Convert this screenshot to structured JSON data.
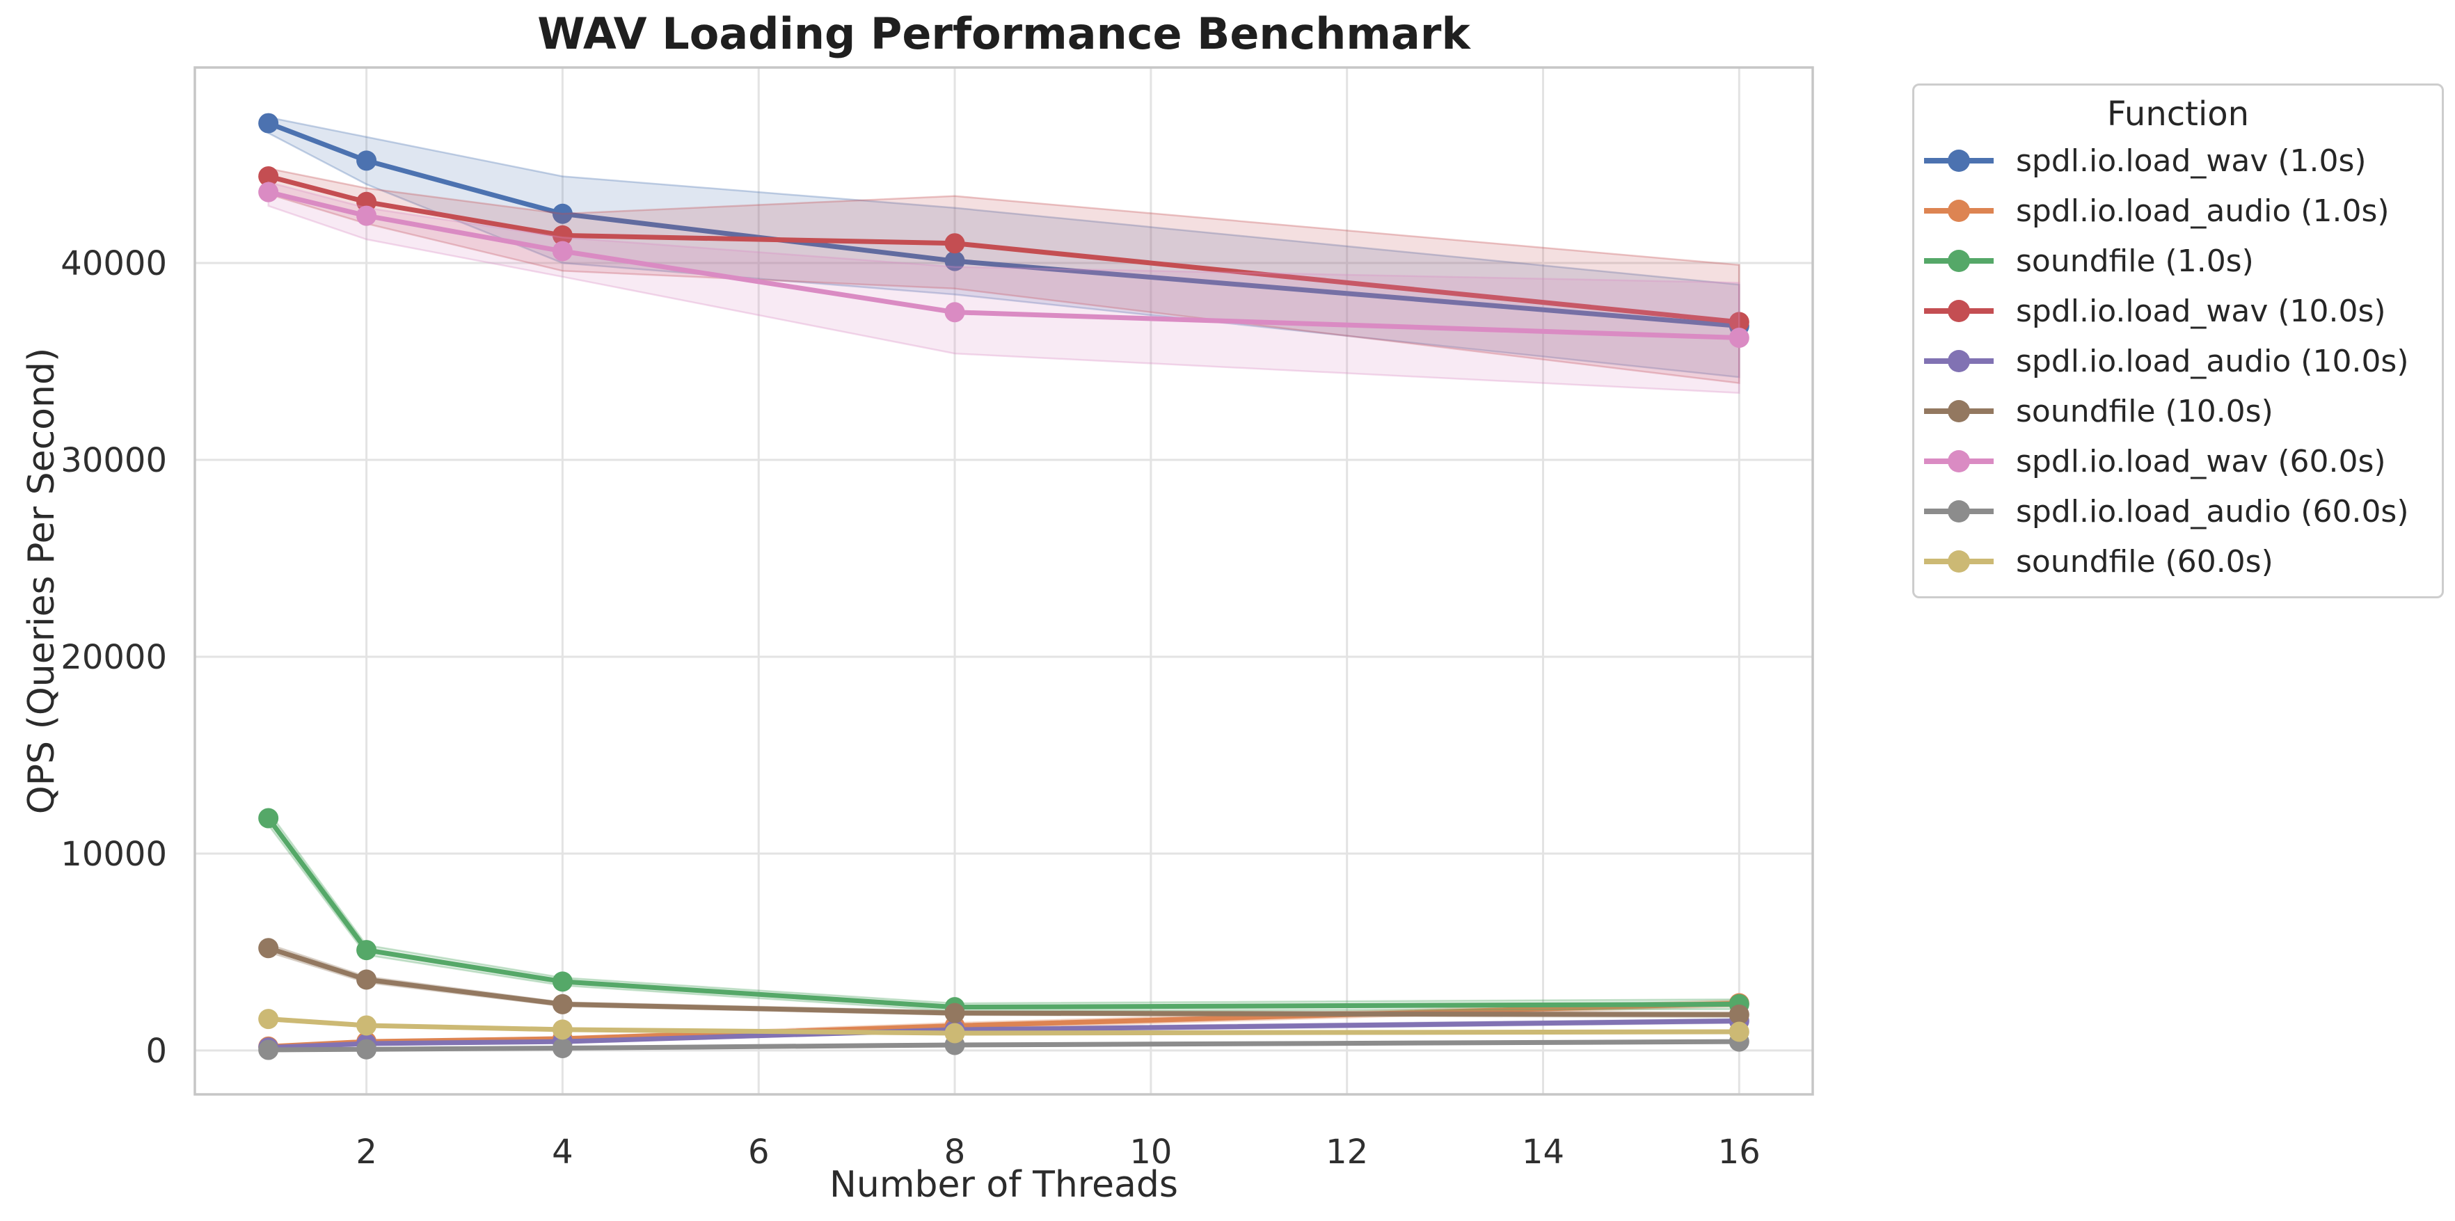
{
  "chart_data": {
    "type": "line",
    "title": "WAV Loading Performance Benchmark",
    "xlabel": "Number of Threads",
    "ylabel": "QPS (Queries Per Second)",
    "legend_title": "Function",
    "legend_position": "outside-right",
    "grid": true,
    "x": [
      1,
      2,
      4,
      8,
      16
    ],
    "xticks": [
      2,
      4,
      6,
      8,
      10,
      12,
      14,
      16
    ],
    "yticks": [
      0,
      10000,
      20000,
      30000,
      40000
    ],
    "xlim": [
      0.25,
      16.75
    ],
    "ylim": [
      -2230,
      49930
    ],
    "styles": {
      "grid_color": "#e3e3e3",
      "spine_color": "#c6c6c6",
      "tick_label_color": "#2f2f2f",
      "band_fill_opacity": 0.18,
      "band_edge_opacity": 0.32
    },
    "series": [
      {
        "name": "spdl.io.load_wav (1.0s)",
        "color": "#4C72B0",
        "values": [
          47100,
          45200,
          42500,
          40100,
          36800
        ],
        "band_lo": [
          46600,
          44000,
          40000,
          38400,
          34200
        ],
        "band_hi": [
          47400,
          46400,
          44400,
          42800,
          38900
        ]
      },
      {
        "name": "spdl.io.load_audio (1.0s)",
        "color": "#DD8452",
        "values": [
          200,
          450,
          600,
          1250,
          2400
        ],
        "band_lo": [
          150,
          380,
          520,
          1100,
          2250
        ],
        "band_hi": [
          250,
          520,
          680,
          1400,
          2550
        ]
      },
      {
        "name": "soundfile (1.0s)",
        "color": "#55A868",
        "values": [
          11800,
          5100,
          3500,
          2200,
          2350
        ],
        "band_lo": [
          11450,
          4850,
          3300,
          2000,
          2100
        ],
        "band_hi": [
          12150,
          5350,
          3700,
          2400,
          2600
        ]
      },
      {
        "name": "spdl.io.load_wav (10.0s)",
        "color": "#C44E52",
        "values": [
          44400,
          43100,
          41400,
          41000,
          37000
        ],
        "band_lo": [
          43500,
          42000,
          39600,
          38700,
          33900
        ],
        "band_hi": [
          44800,
          43800,
          42500,
          43400,
          39900
        ]
      },
      {
        "name": "spdl.io.load_audio (10.0s)",
        "color": "#8172B3",
        "values": [
          150,
          350,
          450,
          1050,
          1500
        ],
        "band_lo": [
          100,
          300,
          400,
          950,
          1400
        ],
        "band_hi": [
          200,
          400,
          500,
          1150,
          1600
        ]
      },
      {
        "name": "soundfile (10.0s)",
        "color": "#937860",
        "values": [
          5200,
          3600,
          2350,
          1900,
          1820
        ],
        "band_lo": [
          5000,
          3450,
          2250,
          1800,
          1700
        ],
        "band_hi": [
          5400,
          3750,
          2450,
          2000,
          1940
        ]
      },
      {
        "name": "spdl.io.load_wav (60.0s)",
        "color": "#DA8BC3",
        "values": [
          43600,
          42400,
          40600,
          37500,
          36200
        ],
        "band_lo": [
          42900,
          41200,
          39300,
          35400,
          33400
        ],
        "band_hi": [
          44100,
          42800,
          41300,
          39800,
          39000
        ]
      },
      {
        "name": "spdl.io.load_audio (60.0s)",
        "color": "#8C8C8C",
        "values": [
          30,
          60,
          120,
          280,
          450
        ],
        "band_lo": [
          20,
          40,
          90,
          240,
          400
        ],
        "band_hi": [
          40,
          80,
          150,
          320,
          500
        ]
      },
      {
        "name": "soundfile (60.0s)",
        "color": "#CCB974",
        "values": [
          1600,
          1270,
          1060,
          880,
          950
        ],
        "band_lo": [
          1520,
          1200,
          1000,
          820,
          880
        ],
        "band_hi": [
          1680,
          1340,
          1120,
          940,
          1020
        ]
      }
    ]
  }
}
